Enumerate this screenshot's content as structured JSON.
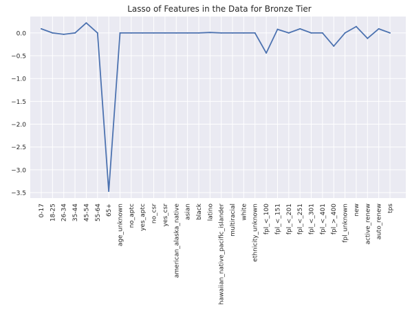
{
  "colors": {
    "plot_background": "#eaeaf2",
    "grid": "#ffffff",
    "line": "#4c72b0",
    "text": "#262626"
  },
  "chart_data": {
    "type": "line",
    "title": "Lasso of Features in the Data for Bronze Tier",
    "xlabel": "",
    "ylabel": "",
    "ylim": [
      -3.62,
      0.36
    ],
    "yticks": [
      0.0,
      -0.5,
      -1.0,
      -1.5,
      -2.0,
      -2.5,
      -3.0,
      -3.5
    ],
    "ytick_labels": [
      "0.0",
      "−0.5",
      "−1.0",
      "−1.5",
      "−2.0",
      "−2.5",
      "−3.0",
      "−3.5"
    ],
    "grid": true,
    "legend": "none",
    "categories": [
      "0-17",
      "18-25",
      "26-34",
      "35-44",
      "45-54",
      "55-64",
      "65+",
      "age_unknown",
      "no_aptc",
      "yes_aptc",
      "no_csr",
      "yes_csr",
      "american_alaska_native",
      "asian",
      "black",
      "latino",
      "hawaiian_native_pacific_islander",
      "multiracial",
      "white",
      "ethnicity_unknown",
      "fpl_<_100",
      "fpl_<_151",
      "fpl_<_201",
      "fpl_<_251",
      "fpl_<_301",
      "fpl_<_401",
      "fpl_>_400",
      "fpl_unknown",
      "new",
      "active_renew",
      "auto_renew",
      "tps"
    ],
    "values": [
      0.09,
      0.0,
      -0.03,
      0.0,
      0.22,
      0.0,
      -3.47,
      0.0,
      0.0,
      0.0,
      0.0,
      0.0,
      0.0,
      0.0,
      0.0,
      0.01,
      0.0,
      0.0,
      0.0,
      0.0,
      -0.44,
      0.08,
      0.0,
      0.09,
      0.0,
      0.0,
      -0.29,
      0.0,
      0.14,
      -0.12,
      0.09,
      0.0
    ]
  }
}
